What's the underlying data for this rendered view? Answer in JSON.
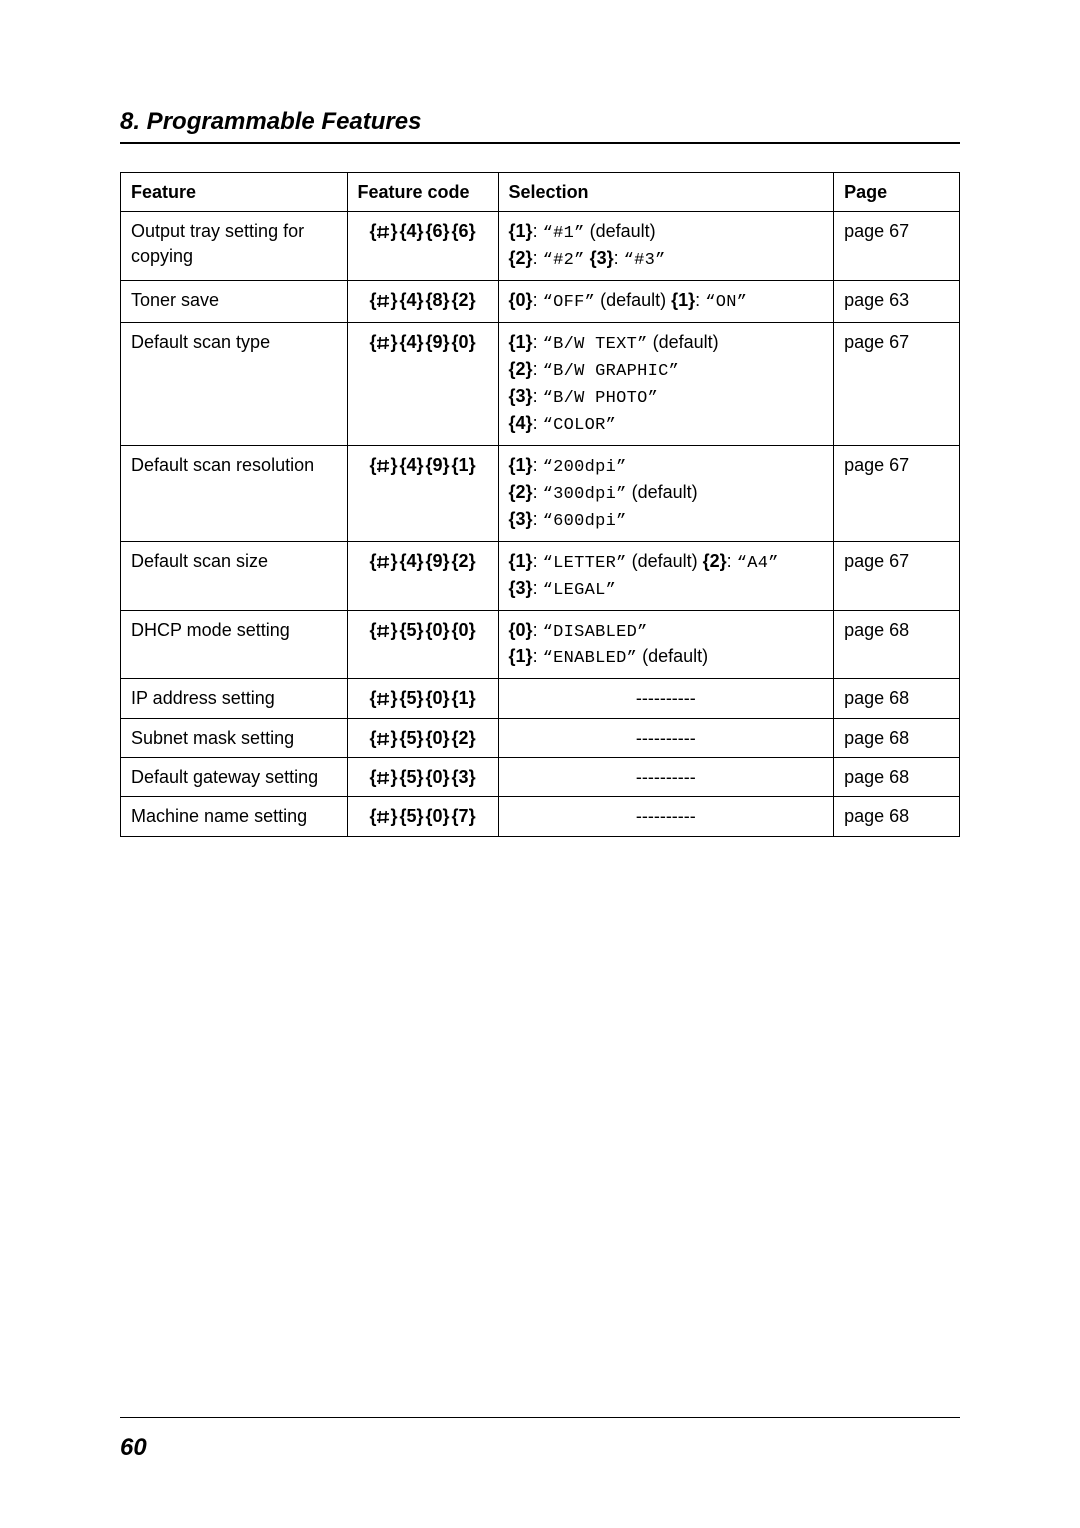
{
  "heading": "8. Programmable Features",
  "page_number": "60",
  "columns": {
    "feature": "Feature",
    "code": "Feature code",
    "selection": "Selection",
    "page": "Page"
  },
  "dash_text": "----------",
  "rows": [
    {
      "feature": "Output tray setting for copying",
      "code_digits": [
        "4",
        "6",
        "6"
      ],
      "selection": [
        {
          "type": "key",
          "t": "{1}"
        },
        {
          "type": "plain",
          "t": ": "
        },
        {
          "type": "mono",
          "t": "“#1”"
        },
        {
          "type": "plain",
          "t": " (default)"
        },
        {
          "type": "br"
        },
        {
          "type": "key",
          "t": "{2}"
        },
        {
          "type": "plain",
          "t": ": "
        },
        {
          "type": "mono",
          "t": "“#2”"
        },
        {
          "type": "plain",
          "t": " "
        },
        {
          "type": "key",
          "t": "{3}"
        },
        {
          "type": "plain",
          "t": ": "
        },
        {
          "type": "mono",
          "t": "“#3”"
        }
      ],
      "page": "page 67"
    },
    {
      "feature": "Toner save",
      "code_digits": [
        "4",
        "8",
        "2"
      ],
      "selection": [
        {
          "type": "key",
          "t": "{0}"
        },
        {
          "type": "plain",
          "t": ": "
        },
        {
          "type": "mono",
          "t": "“OFF”"
        },
        {
          "type": "plain",
          "t": " (default) "
        },
        {
          "type": "key",
          "t": "{1}"
        },
        {
          "type": "plain",
          "t": ": "
        },
        {
          "type": "mono",
          "t": "“ON”"
        }
      ],
      "page": "page 63"
    },
    {
      "feature": "Default scan type",
      "code_digits": [
        "4",
        "9",
        "0"
      ],
      "selection": [
        {
          "type": "key",
          "t": "{1}"
        },
        {
          "type": "plain",
          "t": ": "
        },
        {
          "type": "mono",
          "t": "“B/W TEXT”"
        },
        {
          "type": "plain",
          "t": " (default)"
        },
        {
          "type": "br"
        },
        {
          "type": "key",
          "t": "{2}"
        },
        {
          "type": "plain",
          "t": ": "
        },
        {
          "type": "mono",
          "t": "“B/W GRAPHIC”"
        },
        {
          "type": "br"
        },
        {
          "type": "key",
          "t": "{3}"
        },
        {
          "type": "plain",
          "t": ": "
        },
        {
          "type": "mono",
          "t": "“B/W PHOTO”"
        },
        {
          "type": "br"
        },
        {
          "type": "key",
          "t": "{4}"
        },
        {
          "type": "plain",
          "t": ": "
        },
        {
          "type": "mono",
          "t": "“COLOR”"
        }
      ],
      "page": "page 67"
    },
    {
      "feature": "Default scan resolution",
      "code_digits": [
        "4",
        "9",
        "1"
      ],
      "selection": [
        {
          "type": "key",
          "t": "{1}"
        },
        {
          "type": "plain",
          "t": ": "
        },
        {
          "type": "mono",
          "t": "“200dpi”"
        },
        {
          "type": "br"
        },
        {
          "type": "key",
          "t": "{2}"
        },
        {
          "type": "plain",
          "t": ": "
        },
        {
          "type": "mono",
          "t": "“300dpi”"
        },
        {
          "type": "plain",
          "t": " (default)"
        },
        {
          "type": "br"
        },
        {
          "type": "key",
          "t": "{3}"
        },
        {
          "type": "plain",
          "t": ": "
        },
        {
          "type": "mono",
          "t": "“600dpi”"
        }
      ],
      "page": "page 67"
    },
    {
      "feature": "Default scan size",
      "code_digits": [
        "4",
        "9",
        "2"
      ],
      "selection": [
        {
          "type": "key",
          "t": "{1}"
        },
        {
          "type": "plain",
          "t": ": "
        },
        {
          "type": "mono",
          "t": "“LETTER”"
        },
        {
          "type": "plain",
          "t": " (default) "
        },
        {
          "type": "key",
          "t": "{2}"
        },
        {
          "type": "plain",
          "t": ": "
        },
        {
          "type": "mono",
          "t": "“A4”"
        },
        {
          "type": "br"
        },
        {
          "type": "key",
          "t": "{3}"
        },
        {
          "type": "plain",
          "t": ": "
        },
        {
          "type": "mono",
          "t": "“LEGAL”"
        }
      ],
      "page": "page 67"
    },
    {
      "feature": "DHCP mode setting",
      "code_digits": [
        "5",
        "0",
        "0"
      ],
      "selection": [
        {
          "type": "key",
          "t": "{0}"
        },
        {
          "type": "plain",
          "t": ": "
        },
        {
          "type": "mono",
          "t": "“DISABLED”"
        },
        {
          "type": "br"
        },
        {
          "type": "key",
          "t": "{1}"
        },
        {
          "type": "plain",
          "t": ": "
        },
        {
          "type": "mono",
          "t": "“ENABLED”"
        },
        {
          "type": "plain",
          "t": " (default)"
        }
      ],
      "page": "page 68"
    },
    {
      "feature": "IP address setting",
      "code_digits": [
        "5",
        "0",
        "1"
      ],
      "selection_dash": true,
      "page": "page 68"
    },
    {
      "feature": "Subnet mask setting",
      "code_digits": [
        "5",
        "0",
        "2"
      ],
      "selection_dash": true,
      "page": "page 68"
    },
    {
      "feature": "Default gateway setting",
      "code_digits": [
        "5",
        "0",
        "3"
      ],
      "selection_dash": true,
      "page": "page 68"
    },
    {
      "feature": "Machine name setting",
      "code_digits": [
        "5",
        "0",
        "7"
      ],
      "selection_dash": true,
      "page": "page 68"
    }
  ]
}
